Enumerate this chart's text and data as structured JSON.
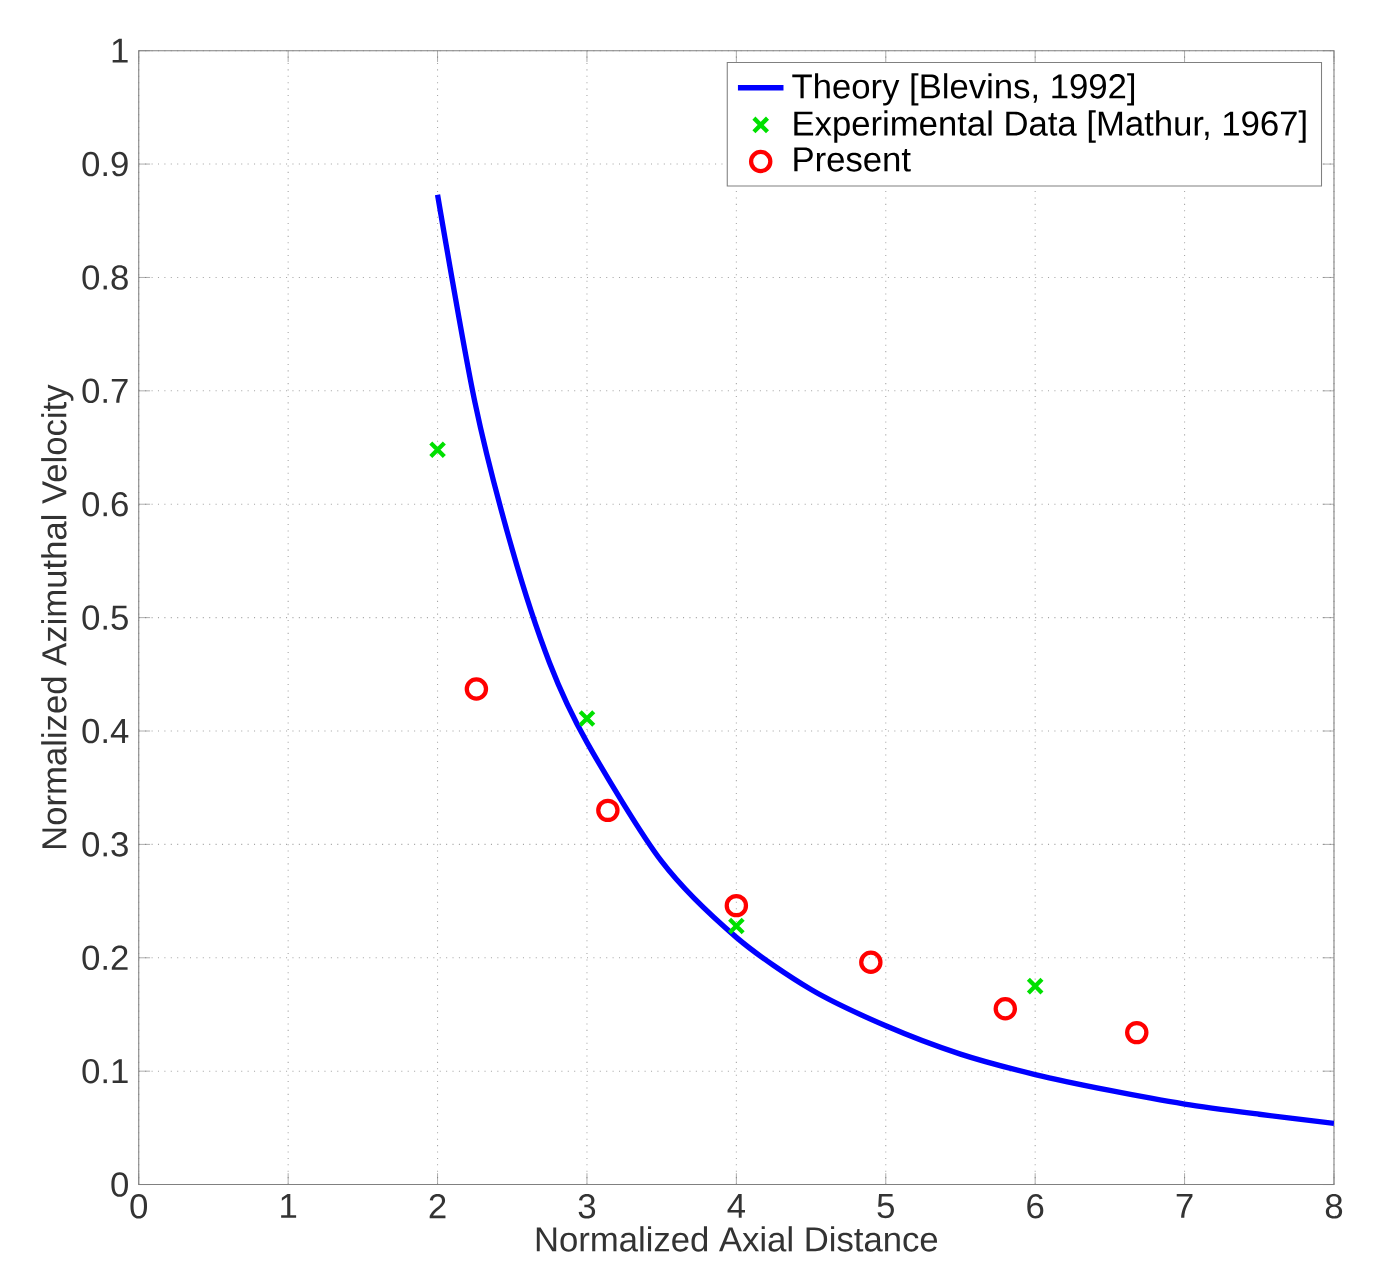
{
  "chart_data": {
    "type": "line",
    "xlabel": "Normalized Axial Distance",
    "ylabel": "Normalized Azimuthal Velocity",
    "xlim": [
      0,
      8
    ],
    "ylim": [
      0,
      1
    ],
    "xticks": [
      0,
      1,
      2,
      3,
      4,
      5,
      6,
      7,
      8
    ],
    "yticks": [
      0,
      0.1,
      0.2,
      0.3,
      0.4,
      0.5,
      0.6,
      0.7,
      0.8,
      0.9,
      1
    ],
    "grid": true,
    "legend": "top right",
    "series": [
      {
        "name": "Theory [Blevins, 1992]",
        "color": "#0000ff",
        "marker": "none",
        "x": [
          2,
          2.25,
          2.5,
          2.75,
          3,
          3.5,
          4,
          4.5,
          5,
          5.5,
          6,
          6.5,
          7,
          7.5,
          8
        ],
        "values": [
          0.873,
          0.69,
          0.56,
          0.46,
          0.39,
          0.285,
          0.218,
          0.172,
          0.14,
          0.115,
          0.097,
          0.083,
          0.071,
          0.062,
          0.054
        ]
      },
      {
        "name": "Experimental Data [Mathur, 1967]",
        "type": "scatter",
        "color": "#00e000",
        "marker": "cross",
        "x": [
          2,
          3,
          4,
          6
        ],
        "values": [
          0.648,
          0.411,
          0.228,
          0.175
        ]
      },
      {
        "name": "Present",
        "type": "scatter",
        "color": "#ff0000",
        "marker": "circle",
        "x": [
          2.26,
          3.14,
          4.0,
          4.9,
          5.8,
          6.68
        ],
        "values": [
          0.437,
          0.33,
          0.246,
          0.196,
          0.155,
          0.134
        ]
      }
    ]
  }
}
